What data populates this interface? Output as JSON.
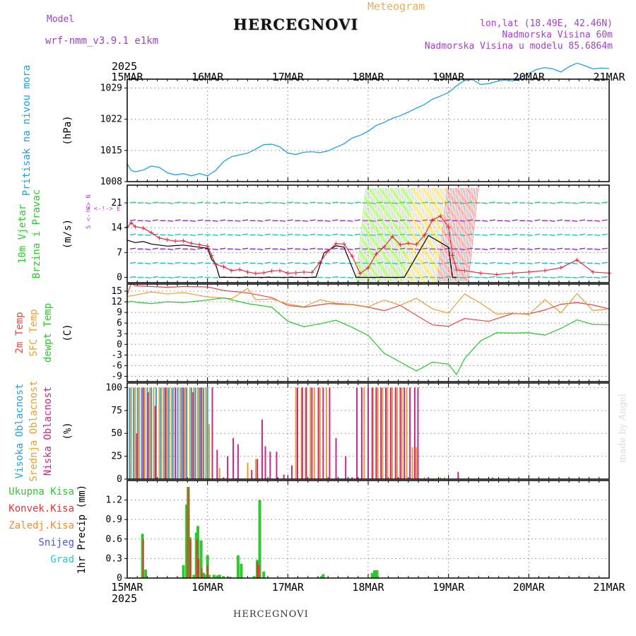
{
  "header": {
    "title": "HERCEGNOVI",
    "model_label": "Model",
    "model_name": "wrf-nmm_v3.9.1 e1km",
    "meteogram_label": "Meteogram",
    "lonlat": "lon,lat (18.49E, 42.46N)",
    "altitude": "Nadmorska Visina 60m",
    "model_altitude": "Nadmorska Visina u modelu 85.6864m"
  },
  "footer": {
    "station": "HERCEGNOVI",
    "credit": "made by Angel"
  },
  "colors": {
    "pressure": "#1ea0e6",
    "wind_speed": "#000000",
    "gust": "#e6283c",
    "temp2m": "#e64646",
    "sfc_temp": "#e6a032",
    "dewpoint": "#28c828",
    "cloud_high": "#28a0dc",
    "cloud_mid": "#e6a028",
    "cloud_low": "#c8288c",
    "precip_total": "#2ec82e",
    "precip_conv": "#e63232",
    "precip_frozen": "#f08c28",
    "snow": "#5050e6",
    "graupel": "#28c8c8",
    "wind_barbs": "#9b28c8"
  },
  "chart_data": [
    {
      "id": "pressure",
      "type": "line",
      "ylabel_lines": [
        "Pritisak na nivou mora"
      ],
      "units": "(hPa)",
      "yticks": [
        1008,
        1015,
        1022,
        1029
      ],
      "ylim": [
        1008,
        1031
      ],
      "x_top_labels": [
        "15MAR",
        "16MAR",
        "17MAR",
        "18MAR",
        "19MAR",
        "20MAR",
        "21MAR"
      ],
      "x_top_year": "2025",
      "series": [
        {
          "x": [
            0,
            0.05,
            0.1,
            0.2,
            0.3,
            0.4,
            0.5,
            0.6,
            0.7,
            0.8,
            0.9,
            1.0,
            1.1,
            1.2,
            1.3,
            1.4,
            1.5,
            1.6,
            1.7,
            1.8,
            1.9,
            2.0,
            2.1,
            2.2,
            2.3,
            2.4,
            2.5,
            2.6,
            2.7,
            2.8,
            2.9,
            3.0,
            3.1,
            3.2,
            3.3,
            3.4,
            3.5,
            3.6,
            3.7,
            3.8,
            3.9,
            4.0,
            4.1,
            4.2,
            4.3,
            4.4,
            4.5,
            4.6,
            4.7,
            4.8,
            4.9,
            5.0,
            5.1,
            5.2,
            5.3,
            5.4,
            5.5,
            5.6,
            5.7,
            5.8,
            5.9,
            6.0
          ],
          "values": [
            1012,
            1010.5,
            1010.2,
            1010.6,
            1011.5,
            1011.2,
            1010,
            1009.5,
            1009.8,
            1009.3,
            1009.8,
            1009.3,
            1010.5,
            1012.5,
            1013.6,
            1014,
            1014.4,
            1015.3,
            1016.3,
            1016.4,
            1015.8,
            1014.4,
            1014.1,
            1014.6,
            1014.7,
            1014.5,
            1014.9,
            1015.7,
            1016.5,
            1017.8,
            1018.4,
            1019.3,
            1020.6,
            1021.3,
            1022.2,
            1022.8,
            1023.6,
            1024.5,
            1025.3,
            1026.5,
            1027.2,
            1028,
            1029.5,
            1030.7,
            1030.9,
            1029.8,
            1030,
            1030.5,
            1030.8,
            1030.6,
            1031.4,
            1032.3,
            1033.2,
            1033.6,
            1033.3,
            1032.6,
            1033.8,
            1034.6,
            1034,
            1033.3,
            1033.5,
            1033.4
          ]
        }
      ]
    },
    {
      "id": "wind",
      "type": "line",
      "ylabel_lines": [
        "10m Vjetar",
        "Brzina i Pravac"
      ],
      "units": "(m/s)",
      "compass": "W <-!-> E",
      "compass_vertical": "S <-!-> N",
      "yticks": [
        0,
        7,
        14,
        21
      ],
      "ylim": [
        -1.5,
        26
      ],
      "series": [
        {
          "name": "speed",
          "x": [
            0,
            0.1,
            0.2,
            0.3,
            0.5,
            0.7,
            0.9,
            1.0,
            1.05,
            1.1,
            1.15,
            2.35,
            2.45,
            2.6,
            2.7,
            2.85,
            3.45,
            3.75,
            4.0,
            4.05,
            4.1
          ],
          "values": [
            10.5,
            9.8,
            10.1,
            9.4,
            8.8,
            9.1,
            8.5,
            8.2,
            5.1,
            3.8,
            0,
            0,
            6.9,
            8.9,
            8.5,
            0,
            0,
            11.8,
            8.5,
            0,
            0
          ]
        },
        {
          "name": "gust",
          "x": [
            0,
            0.05,
            0.1,
            0.2,
            0.3,
            0.4,
            0.5,
            0.6,
            0.7,
            0.8,
            0.9,
            1.0,
            1.05,
            1.1,
            1.2,
            1.3,
            1.4,
            1.5,
            1.6,
            1.7,
            1.8,
            1.9,
            2.0,
            2.1,
            2.2,
            2.3,
            2.4,
            2.5,
            2.6,
            2.7,
            2.8,
            2.9,
            3.0,
            3.1,
            3.2,
            3.3,
            3.4,
            3.5,
            3.6,
            3.7,
            3.8,
            3.9,
            4.0,
            4.05,
            4.1,
            4.2,
            4.4,
            4.6,
            4.8,
            5.0,
            5.2,
            5.4,
            5.6,
            5.8,
            6.0
          ],
          "values": [
            14.2,
            15.4,
            14.3,
            13.9,
            12.6,
            11.1,
            10.6,
            10.2,
            10.3,
            9.6,
            9.2,
            8.8,
            6.2,
            3.7,
            3,
            1.9,
            2.2,
            1.5,
            1.1,
            1.3,
            1.8,
            1.9,
            1.2,
            1.3,
            1.5,
            1.4,
            4.2,
            7.4,
            9.5,
            9.4,
            6,
            1.1,
            2.7,
            6.6,
            8.6,
            11.5,
            9.2,
            9.6,
            9.3,
            11.8,
            16.2,
            17.3,
            14.2,
            6.2,
            2.1,
            1.9,
            1.2,
            0.8,
            1.2,
            1.5,
            1.9,
            2.7,
            4.9,
            1.5,
            1.2
          ]
        }
      ]
    },
    {
      "id": "temperature",
      "type": "line",
      "ylabel_lines": [
        "2m Temp",
        "SFC Temp",
        "dewpt Temp"
      ],
      "units": "(C)",
      "yticks": [
        -9,
        -6,
        -3,
        0,
        3,
        6,
        9,
        12,
        15
      ],
      "ylim": [
        -10.5,
        17
      ],
      "series": [
        {
          "name": "2m Temp",
          "x": [
            0,
            0.05,
            0.1,
            0.3,
            0.5,
            0.7,
            1.0,
            1.2,
            1.5,
            1.8,
            2.0,
            2.2,
            2.5,
            2.8,
            3.0,
            3.2,
            3.4,
            3.6,
            3.8,
            4.0,
            4.2,
            4.5,
            4.8,
            5.0,
            5.2,
            5.4,
            5.6,
            5.8,
            6.0
          ],
          "values": [
            14,
            17.2,
            16.5,
            16.3,
            16.1,
            16.3,
            16.2,
            15.2,
            14.5,
            13.2,
            11,
            10.5,
            11.5,
            11.2,
            10.5,
            9.5,
            11,
            8.2,
            5.5,
            5.1,
            7.3,
            6.5,
            8.7,
            8.6,
            9.7,
            11.3,
            11.8,
            11.1,
            10
          ]
        },
        {
          "name": "SFC Temp",
          "x": [
            0,
            0.1,
            0.3,
            0.5,
            0.7,
            1.0,
            1.3,
            1.5,
            1.6,
            1.8,
            2.0,
            2.2,
            2.4,
            2.6,
            2.8,
            3.0,
            3.2,
            3.4,
            3.6,
            3.8,
            4.0,
            4.2,
            4.4,
            4.6,
            4.8,
            5.0,
            5.2,
            5.4,
            5.6,
            5.8,
            6.0
          ],
          "values": [
            13.5,
            13.9,
            14.8,
            14.2,
            14.6,
            13.4,
            12.9,
            15.8,
            12.6,
            12.8,
            11.4,
            10.6,
            12.6,
            11.6,
            11.3,
            10.6,
            12.5,
            11,
            13,
            10,
            8.8,
            14.2,
            11.6,
            8.5,
            8.8,
            8.4,
            12.6,
            8.9,
            14.3,
            9.5,
            10
          ]
        },
        {
          "name": "dewpt Temp",
          "x": [
            0,
            0.05,
            0.1,
            0.3,
            0.5,
            0.7,
            1.0,
            1.2,
            1.5,
            1.8,
            2.0,
            2.2,
            2.4,
            2.6,
            2.8,
            3.0,
            3.2,
            3.4,
            3.6,
            3.8,
            4.0,
            4.1,
            4.2,
            4.4,
            4.6,
            4.8,
            5.0,
            5.2,
            5.4,
            5.6,
            5.8,
            6.0
          ],
          "values": [
            11.8,
            12.2,
            11.9,
            11.5,
            12,
            11.8,
            12.5,
            13.1,
            11.5,
            10.5,
            6.5,
            5,
            5.8,
            6.8,
            4.8,
            2.5,
            -2.5,
            -5,
            -7.5,
            -5,
            -5.6,
            -8.5,
            -4,
            1,
            3.3,
            3.2,
            3.3,
            2.6,
            4.5,
            6.9,
            5.6,
            5.5
          ]
        }
      ]
    },
    {
      "id": "clouds",
      "type": "bar",
      "ylabel_lines": [
        "Visoka Oblacnost",
        "Srednja Oblacnost",
        "Niska Oblacnost"
      ],
      "units": "(%)",
      "yticks": [
        0,
        25,
        50,
        75,
        100
      ],
      "ylim": [
        0,
        105
      ],
      "series": [
        {
          "name": "Visoka Oblacnost",
          "x": [
            0.03,
            0.08,
            0.13,
            0.18,
            0.25,
            0.3,
            0.36,
            0.42,
            0.47,
            0.52,
            0.57,
            0.63,
            0.68,
            0.74,
            0.8,
            0.85,
            0.9,
            0.95,
            1.0,
            2.33,
            4.55
          ],
          "values": [
            100,
            100,
            100,
            100,
            100,
            100,
            100,
            100,
            100,
            100,
            100,
            100,
            100,
            100,
            100,
            100,
            100,
            100,
            100,
            2,
            2
          ]
        },
        {
          "name": "Srednja Oblacnost",
          "x": [
            0.05,
            0.1,
            0.15,
            0.22,
            0.28,
            0.33,
            0.4,
            0.45,
            0.5,
            0.55,
            0.6,
            0.66,
            0.72,
            0.78,
            0.83,
            0.88,
            0.93,
            0.98,
            1.02,
            1.15,
            1.5,
            1.6,
            2.1,
            2.17,
            2.22,
            2.28,
            2.33,
            2.4,
            2.48,
            2.95,
            3.0,
            3.06,
            3.12,
            3.18,
            3.24,
            3.3,
            3.36,
            3.42,
            3.48,
            3.55,
            3.6,
            3.7,
            3.9,
            3.95
          ],
          "values": [
            100,
            100,
            100,
            100,
            100,
            100,
            100,
            100,
            100,
            100,
            100,
            100,
            100,
            100,
            100,
            100,
            100,
            100,
            60,
            12,
            18,
            22,
            100,
            100,
            100,
            100,
            100,
            100,
            100,
            100,
            100,
            100,
            100,
            100,
            100,
            100,
            100,
            100,
            100,
            35,
            35,
            2,
            2,
            2
          ]
        },
        {
          "name": "Niska Oblacnost",
          "x": [
            0.12,
            0.2,
            0.26,
            0.35,
            0.48,
            0.6,
            0.7,
            0.82,
            0.92,
            1.06,
            1.12,
            1.2,
            1.25,
            1.32,
            1.38,
            1.55,
            1.62,
            1.68,
            1.72,
            1.78,
            1.86,
            1.95,
            2.05,
            2.12,
            2.18,
            2.23,
            2.3,
            2.38,
            2.44,
            2.52,
            2.6,
            2.72,
            2.8,
            2.86,
            2.92,
            3.0,
            3.05,
            3.1,
            3.16,
            3.22,
            3.28,
            3.34,
            3.4,
            3.45,
            3.52,
            3.58,
            3.62,
            3.75,
            4.12
          ],
          "values": [
            50,
            100,
            95,
            80,
            100,
            100,
            100,
            95,
            100,
            100,
            32,
            2,
            25,
            45,
            38,
            10,
            22,
            65,
            36,
            30,
            30,
            5,
            15,
            100,
            100,
            100,
            100,
            100,
            100,
            100,
            45,
            25,
            2,
            100,
            100,
            100,
            100,
            100,
            100,
            100,
            100,
            100,
            100,
            100,
            100,
            100,
            100,
            2,
            8
          ]
        }
      ]
    },
    {
      "id": "precip",
      "type": "bar",
      "ylabel_lines": [
        "Ukupna Kisa",
        "Konvek.Kisa",
        "Zaledj.Kisa",
        "Snijeg",
        "Grad"
      ],
      "units": "1hr Precip (mm)",
      "yticks": [
        0,
        0.3,
        0.6,
        0.9,
        1.2
      ],
      "ylim": [
        0,
        1.5
      ],
      "x_bottom_labels": [
        "15MAR",
        "16MAR",
        "17MAR",
        "18MAR",
        "19MAR",
        "20MAR",
        "21MAR"
      ],
      "x_bottom_year": "2025",
      "series": [
        {
          "name": "Ukupna Kisa",
          "x": [
            0.19,
            0.23,
            0.7,
            0.74,
            0.76,
            0.78,
            0.83,
            0.86,
            0.88,
            0.92,
            0.95,
            0.97,
            1.0,
            1.02,
            1.08,
            1.12,
            1.15,
            1.2,
            1.28,
            1.38,
            1.42,
            1.58,
            1.62,
            1.65,
            1.7,
            2.42,
            2.44,
            3.05,
            3.08,
            3.11
          ],
          "values": [
            0.68,
            0.13,
            0.2,
            1.13,
            1.4,
            0.63,
            0.05,
            0.7,
            0.8,
            0.58,
            0.08,
            0.05,
            0.35,
            0.05,
            0.05,
            0.04,
            0.05,
            0.03,
            0.02,
            0.35,
            0.22,
            0.03,
            0.28,
            1.2,
            0.1,
            0.03,
            0.06,
            0.08,
            0.12,
            0.12
          ]
        },
        {
          "name": "Konvek.Kisa",
          "x": [
            0.2,
            0.75,
            0.77,
            0.79,
            0.87,
            0.89,
            0.93,
            1.0,
            1.62,
            1.64
          ],
          "values": [
            0.6,
            1.05,
            1.35,
            0.6,
            0.6,
            0.3,
            0.15,
            0.2,
            0.25,
            0.2
          ]
        }
      ]
    }
  ]
}
